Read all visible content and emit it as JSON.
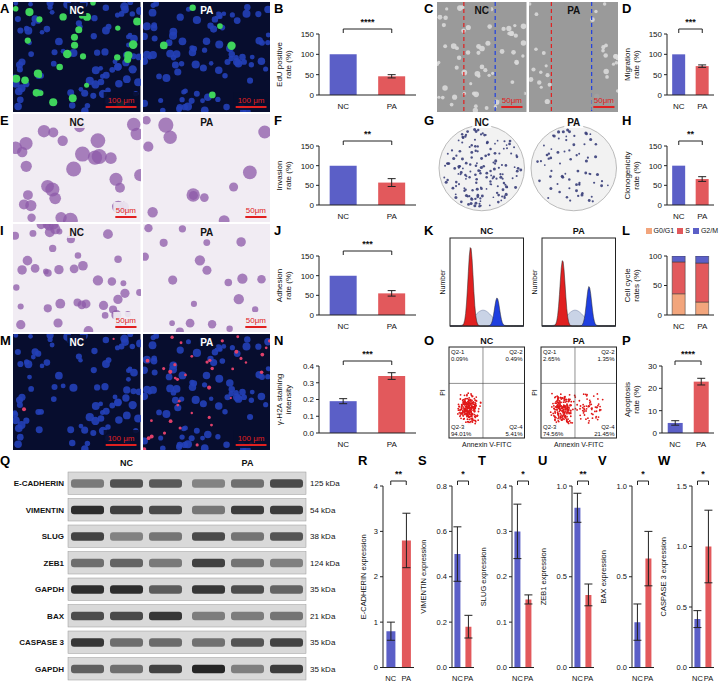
{
  "images": [
    {
      "panel": "A",
      "labels": [
        "NC",
        "PA"
      ],
      "scale_bar": "100 μm"
    },
    {
      "panel": "C",
      "labels": [
        "NC",
        "PA"
      ],
      "scale_bar": "50μm"
    },
    {
      "panel": "E",
      "labels": [
        "NC",
        "PA"
      ],
      "scale_bar": "50μm"
    },
    {
      "panel": "G",
      "labels": [
        "NC",
        "PA"
      ]
    },
    {
      "panel": "I",
      "labels": [
        "NC",
        "PA"
      ],
      "scale_bar": "50μm"
    },
    {
      "panel": "M",
      "labels": [
        "NC",
        "PA"
      ],
      "scale_bar": "100 μm"
    }
  ],
  "cell_cycle_histograms": {
    "panel": "K",
    "labels": [
      "NC",
      "PA"
    ],
    "y_label": "Number"
  },
  "flow_cytometry": {
    "panel": "O",
    "x_label": "Annexin V-FITC",
    "y_label": "PI",
    "plots": [
      {
        "label": "NC",
        "quadrants": [
          {
            "name": "Q2-1",
            "value": "0.09%"
          },
          {
            "name": "Q2-2",
            "value": "0.49%"
          },
          {
            "name": "Q2-3",
            "value": "94.01%"
          },
          {
            "name": "Q2-4",
            "value": "5.41%"
          }
        ]
      },
      {
        "label": "PA",
        "quadrants": [
          {
            "name": "Q2-1",
            "value": "2.65%"
          },
          {
            "name": "Q2-2",
            "value": "1.35%"
          },
          {
            "name": "Q2-3",
            "value": "74.56%"
          },
          {
            "name": "Q2-4",
            "value": "21.45%"
          }
        ]
      }
    ]
  },
  "western_blot": {
    "panel": "Q",
    "groups": [
      "NC",
      "PA"
    ],
    "rows": [
      {
        "protein": "E-CADHERIN",
        "size": "125 kDa"
      },
      {
        "protein": "VIMENTIN",
        "size": "54 kDa"
      },
      {
        "protein": "SLUG",
        "size": "38 kDa"
      },
      {
        "protein": "ZEB1",
        "size": "124 kDa"
      },
      {
        "protein": "GAPDH",
        "size": "35 kDa"
      },
      {
        "protein": "BAX",
        "size": "21 kDa"
      },
      {
        "protein": "CASPASE 3",
        "size": "35 kDa"
      },
      {
        "protein": "GAPDH",
        "size": "35 kDa"
      }
    ]
  },
  "chart_data": [
    {
      "type": "bar",
      "panel": "B",
      "ylabel": "EdU positive rate (%)",
      "categories": [
        "NC",
        "PA"
      ],
      "values": [
        100,
        46
      ],
      "errors": [
        0,
        4
      ],
      "colors": [
        "#5b5fc7",
        "#e2595c"
      ],
      "ylim": [
        0,
        150
      ],
      "yticks": [
        0,
        50,
        100,
        150
      ],
      "annotation": "****"
    },
    {
      "type": "bar",
      "panel": "D",
      "ylabel": "Migration rate (%)",
      "categories": [
        "NC",
        "PA"
      ],
      "values": [
        100,
        71
      ],
      "errors": [
        0,
        3
      ],
      "colors": [
        "#5b5fc7",
        "#e2595c"
      ],
      "ylim": [
        0,
        150
      ],
      "yticks": [
        0,
        50,
        100,
        150
      ],
      "annotation": "***"
    },
    {
      "type": "bar",
      "panel": "F",
      "ylabel": "Invasion rate (%)",
      "categories": [
        "NC",
        "PA"
      ],
      "values": [
        100,
        57
      ],
      "errors": [
        0,
        10
      ],
      "colors": [
        "#5b5fc7",
        "#e2595c"
      ],
      "ylim": [
        0,
        150
      ],
      "yticks": [
        0,
        50,
        100,
        150
      ],
      "annotation": "**"
    },
    {
      "type": "bar",
      "panel": "H",
      "ylabel": "Clonogenicity rate (%)",
      "categories": [
        "NC",
        "PA"
      ],
      "values": [
        100,
        66
      ],
      "errors": [
        0,
        6
      ],
      "colors": [
        "#5b5fc7",
        "#e2595c"
      ],
      "ylim": [
        0,
        150
      ],
      "yticks": [
        0,
        50,
        100,
        150
      ],
      "annotation": "**"
    },
    {
      "type": "bar",
      "panel": "J",
      "ylabel": "Adhesion rate (%)",
      "categories": [
        "NC",
        "PA"
      ],
      "values": [
        100,
        55
      ],
      "errors": [
        0,
        7
      ],
      "colors": [
        "#5b5fc7",
        "#e2595c"
      ],
      "ylim": [
        0,
        150
      ],
      "yticks": [
        0,
        50,
        100,
        150
      ],
      "annotation": "***"
    },
    {
      "type": "bar",
      "panel": "L",
      "stacked": true,
      "legend": "top",
      "ylabel": "Cell cycle rates (%)",
      "categories": [
        "NC",
        "PA"
      ],
      "series": [
        {
          "name": "G0/G1",
          "color": "#f2a57c",
          "values": [
            36,
            22
          ]
        },
        {
          "name": "S",
          "color": "#e2595c",
          "values": [
            54,
            66
          ]
        },
        {
          "name": "G2/M",
          "color": "#5b5fc7",
          "values": [
            10,
            12
          ]
        }
      ],
      "ylim": [
        0,
        100
      ],
      "yticks": [
        0,
        50,
        100
      ]
    },
    {
      "type": "bar",
      "panel": "N",
      "ylabel": "γ-H2A staining intensity",
      "categories": [
        "NC",
        "PA"
      ],
      "values": [
        0.19,
        0.34
      ],
      "errors": [
        0.015,
        0.02
      ],
      "colors": [
        "#5b5fc7",
        "#e2595c"
      ],
      "ylim": [
        0,
        0.4
      ],
      "yticks": [
        {
          "value": 0,
          "label": "0.0"
        },
        0.1,
        0.2,
        0.3,
        0.4
      ],
      "annotation": "***"
    },
    {
      "type": "bar",
      "panel": "P",
      "ylabel": "Apoptosis rate (%)",
      "categories": [
        "NC",
        "PA"
      ],
      "values": [
        4.5,
        23
      ],
      "errors": [
        1,
        1.5
      ],
      "colors": [
        "#5b5fc7",
        "#e2595c"
      ],
      "ylim": [
        0,
        30
      ],
      "yticks": [
        0,
        10,
        20,
        30
      ],
      "annotation": "****"
    },
    {
      "type": "bar",
      "panel": "R",
      "ylabel": "E-CADHERIN expression",
      "categories": [
        "NC",
        "PA"
      ],
      "values": [
        0.8,
        2.8
      ],
      "errors": [
        0.2,
        0.6
      ],
      "colors": [
        "#5b5fc7",
        "#e2595c"
      ],
      "ylim": [
        0,
        4
      ],
      "yticks": [
        0,
        1,
        2,
        3,
        4
      ],
      "annotation": "**"
    },
    {
      "type": "bar",
      "panel": "S",
      "ylabel": "VIMENTIN expression",
      "categories": [
        "NC",
        "PA"
      ],
      "values": [
        0.5,
        0.18
      ],
      "errors": [
        0.12,
        0.05
      ],
      "colors": [
        "#5b5fc7",
        "#e2595c"
      ],
      "ylim": [
        0,
        0.8
      ],
      "yticks": [
        {
          "value": 0,
          "label": "0.0"
        },
        0.2,
        0.4,
        0.6,
        0.8
      ],
      "annotation": "*"
    },
    {
      "type": "bar",
      "panel": "T",
      "ylabel": "SLUG expression",
      "categories": [
        "NC",
        "PA"
      ],
      "values": [
        0.3,
        0.15
      ],
      "errors": [
        0.06,
        0.01
      ],
      "colors": [
        "#5b5fc7",
        "#e2595c"
      ],
      "ylim": [
        0,
        0.4
      ],
      "yticks": [
        {
          "value": 0,
          "label": "0.0"
        },
        0.1,
        0.2,
        0.3,
        0.4
      ],
      "annotation": "*"
    },
    {
      "type": "bar",
      "panel": "U",
      "ylabel": "ZEB1 expression",
      "categories": [
        "NC",
        "PA"
      ],
      "values": [
        0.88,
        0.4
      ],
      "errors": [
        0.08,
        0.06
      ],
      "colors": [
        "#5b5fc7",
        "#e2595c"
      ],
      "ylim": [
        0,
        1
      ],
      "yticks": [
        {
          "value": 0,
          "label": "0.0"
        },
        0.5,
        {
          "value": 1,
          "label": "1.0"
        }
      ],
      "annotation": "**"
    },
    {
      "type": "bar",
      "panel": "V",
      "ylabel": "BAX expression",
      "categories": [
        "NC",
        "PA"
      ],
      "values": [
        0.25,
        0.6
      ],
      "errors": [
        0.1,
        0.15
      ],
      "colors": [
        "#5b5fc7",
        "#e2595c"
      ],
      "ylim": [
        0,
        1
      ],
      "yticks": [
        {
          "value": 0,
          "label": "0.0"
        },
        0.5,
        {
          "value": 1,
          "label": "1.0"
        }
      ],
      "annotation": "*"
    },
    {
      "type": "bar",
      "panel": "W",
      "ylabel": "CASPASE 3 expression",
      "categories": [
        "NC",
        "PA"
      ],
      "values": [
        0.4,
        1
      ],
      "errors": [
        0.07,
        0.3
      ],
      "colors": [
        "#5b5fc7",
        "#e2595c"
      ],
      "ylim": [
        0,
        1.5
      ],
      "yticks": [
        {
          "value": 0,
          "label": "0.0"
        },
        0.5,
        {
          "value": 1,
          "label": "1.0"
        },
        1.5
      ],
      "annotation": "*"
    }
  ]
}
